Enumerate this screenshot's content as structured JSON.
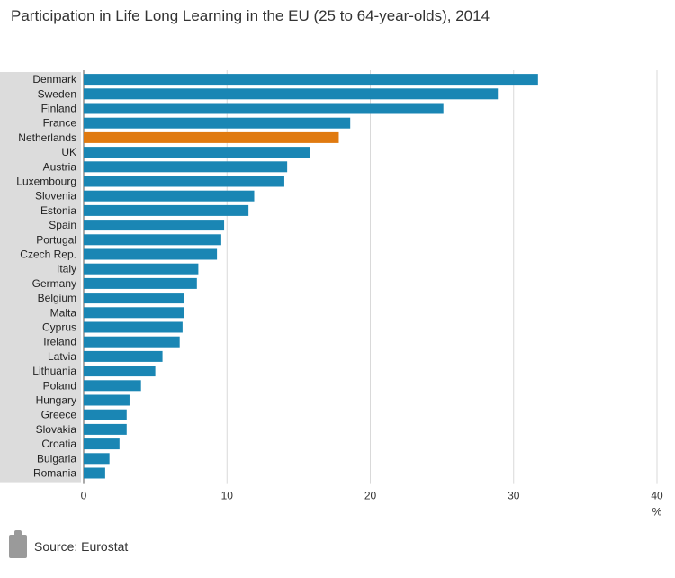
{
  "chart_data": {
    "type": "bar",
    "orientation": "horizontal",
    "title": "Participation in Life Long Learning in the EU (25 to 64-year-olds), 2014",
    "unit_label": "%",
    "xlim": [
      0,
      40
    ],
    "x_ticks": [
      0,
      10,
      20,
      30,
      40
    ],
    "grid": true,
    "highlight_category": "Netherlands",
    "colors": {
      "default": "#1a86b4",
      "highlight": "#e07a10",
      "grid": "#d9d9d9",
      "label_bg": "#dcdcdc"
    },
    "categories": [
      "Denmark",
      "Sweden",
      "Finland",
      "France",
      "Netherlands",
      "UK",
      "Austria",
      "Luxembourg",
      "Slovenia",
      "Estonia",
      "Spain",
      "Portugal",
      "Czech Rep.",
      "Italy",
      "Germany",
      "Belgium",
      "Malta",
      "Cyprus",
      "Ireland",
      "Latvia",
      "Lithuania",
      "Poland",
      "Hungary",
      "Greece",
      "Slovakia",
      "Croatia",
      "Bulgaria",
      "Romania"
    ],
    "values": [
      31.7,
      28.9,
      25.1,
      18.6,
      17.8,
      15.8,
      14.2,
      14.0,
      11.9,
      11.5,
      9.8,
      9.6,
      9.3,
      8.0,
      7.9,
      7.0,
      7.0,
      6.9,
      6.7,
      5.5,
      5.0,
      4.0,
      3.2,
      3.0,
      3.0,
      2.5,
      1.8,
      1.5
    ]
  },
  "source": {
    "label": "Source: Eurostat",
    "icon": "clipboard-icon"
  }
}
